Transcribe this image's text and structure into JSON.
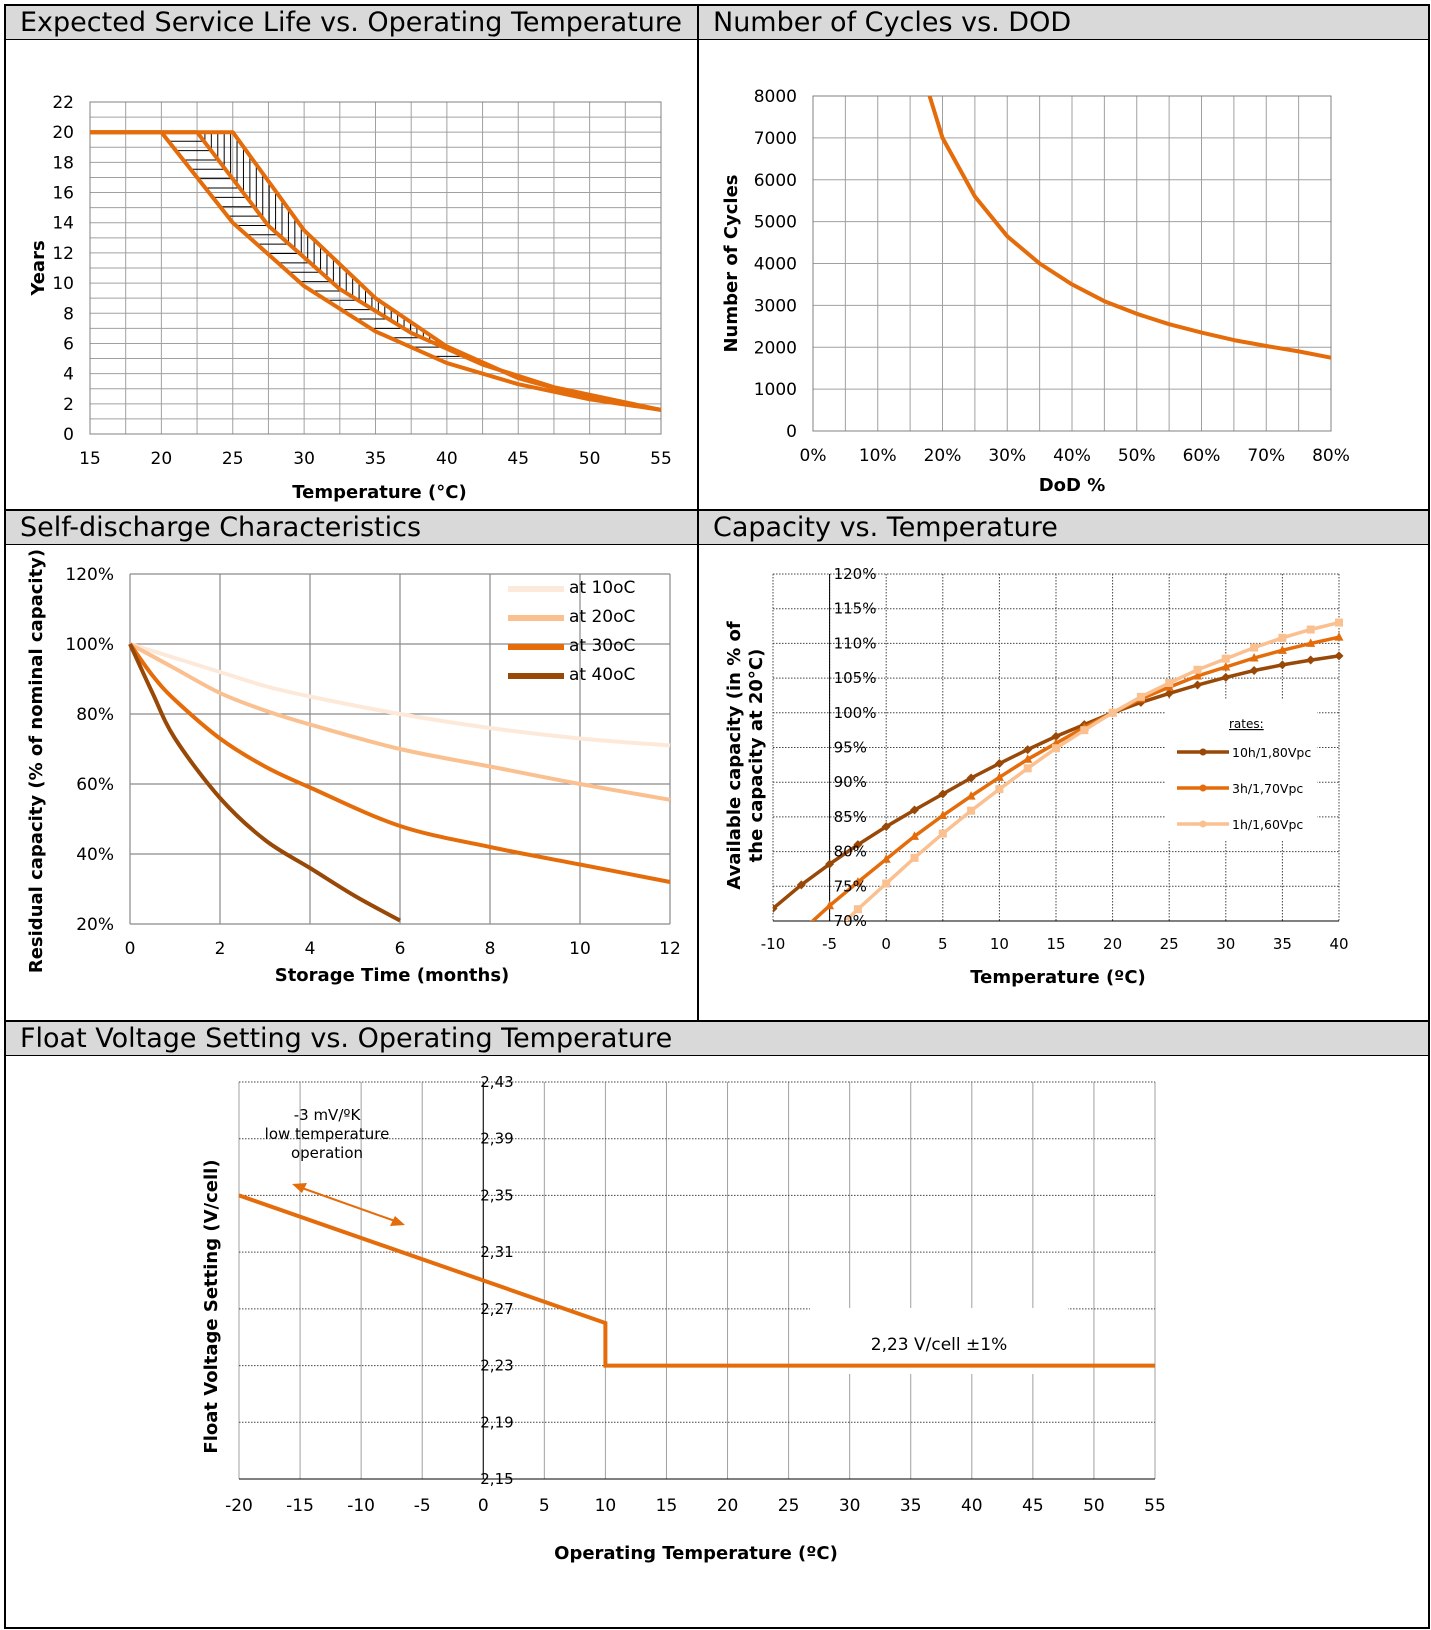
{
  "colors": {
    "orange": "#e46c0a",
    "dark_brown": "#984807",
    "light_orange": "#fac090",
    "pale_orange": "#fde9d9",
    "header_gray": "#d9d9d9",
    "grid": "#9a9a9a"
  },
  "chart_data": [
    {
      "id": "service-life",
      "type": "line",
      "title": "Expected Service Life vs. Operating Temperature",
      "xlabel": "Temperature (°C)",
      "ylabel": "Years",
      "xlim": [
        15,
        55
      ],
      "ylim": [
        0,
        22
      ],
      "x_ticks": [
        "15",
        "20",
        "25",
        "30",
        "35",
        "40",
        "45",
        "50",
        "55"
      ],
      "y_ticks": [
        "0",
        "2",
        "4",
        "6",
        "8",
        "10",
        "12",
        "14",
        "16",
        "18",
        "20",
        "22"
      ],
      "grid": true,
      "series": [
        {
          "x": [
            15,
            20,
            25,
            30,
            35,
            40,
            45,
            50,
            55
          ],
          "values": [
            20,
            20,
            14,
            9.8,
            6.8,
            4.7,
            3.3,
            2.3,
            1.6
          ]
        },
        {
          "x": [
            15,
            22.5,
            27.5,
            32.5,
            37.5,
            42.5,
            47.5,
            52.5,
            55
          ],
          "values": [
            20,
            20,
            13.8,
            9.6,
            6.7,
            4.6,
            3.1,
            2.1,
            1.6
          ]
        },
        {
          "x": [
            15,
            25,
            30,
            35,
            40,
            45,
            50,
            55
          ],
          "values": [
            20,
            20,
            13.5,
            9,
            5.8,
            3.7,
            2.4,
            1.6
          ]
        }
      ],
      "shaded_region": "hatched band between lower and upper curves"
    },
    {
      "id": "cycles-dod",
      "type": "line",
      "title": "Number of Cycles vs. DOD",
      "xlabel": "DoD %",
      "ylabel": "Number of Cycles",
      "xlim": [
        0,
        80
      ],
      "ylim": [
        0,
        8000
      ],
      "x_ticks": [
        "0%",
        "10%",
        "20%",
        "30%",
        "40%",
        "50%",
        "60%",
        "70%",
        "80%"
      ],
      "y_ticks": [
        "0",
        "1000",
        "2000",
        "3000",
        "4000",
        "5000",
        "6000",
        "7000",
        "8000"
      ],
      "grid": true,
      "series": [
        {
          "x": [
            18,
            20,
            25,
            30,
            35,
            40,
            45,
            50,
            55,
            60,
            65,
            70,
            75,
            80
          ],
          "values": [
            8000,
            7000,
            5600,
            4650,
            4000,
            3500,
            3100,
            2800,
            2550,
            2350,
            2170,
            2030,
            1900,
            1750
          ]
        }
      ]
    },
    {
      "id": "self-discharge",
      "type": "line",
      "title": "Self-discharge Characteristics",
      "xlabel": "Storage Time (months)",
      "ylabel": "Residual capacity (% of  nominal capacity)",
      "xlim": [
        0,
        12
      ],
      "ylim": [
        20,
        120
      ],
      "x_ticks": [
        "0",
        "2",
        "4",
        "6",
        "8",
        "10",
        "12"
      ],
      "y_ticks": [
        "20%",
        "40%",
        "60%",
        "80%",
        "100%",
        "120%"
      ],
      "grid": true,
      "legend": "top-right",
      "series": [
        {
          "name": "at 10oC",
          "x": [
            0,
            1,
            2,
            3,
            4,
            6,
            8,
            10,
            12
          ],
          "values": [
            100,
            96,
            92,
            88,
            85,
            80,
            76,
            73,
            71
          ]
        },
        {
          "name": "at 20oC",
          "x": [
            0,
            1,
            2,
            3,
            4,
            6,
            8,
            10,
            12
          ],
          "values": [
            100,
            93,
            86,
            81,
            77,
            70,
            65,
            60,
            55.5
          ]
        },
        {
          "name": "at 30oC",
          "x": [
            0,
            0.5,
            1,
            2,
            3,
            4,
            6,
            8,
            10,
            12
          ],
          "values": [
            100,
            91,
            84,
            73,
            65,
            59,
            48,
            42,
            37,
            32
          ]
        },
        {
          "name": "at 40oC",
          "x": [
            0,
            0.5,
            1,
            2,
            3,
            4,
            5,
            6
          ],
          "values": [
            100,
            86,
            73,
            56,
            44,
            36,
            28,
            21
          ]
        }
      ]
    },
    {
      "id": "capacity-temp",
      "type": "line",
      "title": "Capacity vs. Temperature",
      "xlabel": "Temperature (ºC)",
      "ylabel": "Available capacity (in % of  the capacity at 20°C)",
      "xlim": [
        -10,
        40
      ],
      "ylim": [
        70,
        120
      ],
      "x_ticks": [
        "-10",
        "-5",
        "0",
        "5",
        "10",
        "15",
        "20",
        "25",
        "30",
        "35",
        "40"
      ],
      "y_ticks": [
        "70%",
        "75%",
        "80%",
        "85%",
        "90%",
        "95%",
        "100%",
        "105%",
        "110%",
        "115%",
        "120%"
      ],
      "grid": true,
      "legend_title": "rates:",
      "legend": "right",
      "series": [
        {
          "name": "10h/1,80Vpc",
          "marker": "diamond",
          "x": [
            -10,
            -7.5,
            -5,
            -2.5,
            0,
            2.5,
            5,
            7.5,
            10,
            12.5,
            15,
            17.5,
            20,
            22.5,
            25,
            27.5,
            30,
            32.5,
            35,
            37.5,
            40
          ],
          "values": [
            71.8,
            75.2,
            78.2,
            81,
            83.6,
            86,
            88.3,
            90.6,
            92.7,
            94.7,
            96.6,
            98.3,
            100,
            101.5,
            102.8,
            104,
            105.1,
            106.1,
            106.9,
            107.6,
            108.2
          ]
        },
        {
          "name": "3h/1,70Vpc",
          "marker": "triangle",
          "x": [
            -7.5,
            -5,
            -2.5,
            0,
            2.5,
            5,
            7.5,
            10,
            12.5,
            15,
            17.5,
            20,
            22.5,
            25,
            27.5,
            30,
            32.5,
            35,
            37.5,
            40
          ],
          "values": [
            68.5,
            72.2,
            75.6,
            78.9,
            82.2,
            85.2,
            88,
            90.7,
            93.3,
            95.6,
            97.9,
            100,
            102,
            103.7,
            105.3,
            106.6,
            107.9,
            109,
            110,
            110.9
          ]
        },
        {
          "name": "1h/1,60Vpc",
          "marker": "square",
          "x": [
            -5,
            -2.5,
            0,
            2.5,
            5,
            7.5,
            10,
            12.5,
            15,
            17.5,
            20,
            22.5,
            25,
            27.5,
            30,
            32.5,
            35,
            37.5,
            40
          ],
          "values": [
            67.8,
            71.7,
            75.4,
            79.1,
            82.6,
            85.9,
            89,
            92,
            94.9,
            97.5,
            100,
            102.3,
            104.3,
            106.2,
            107.8,
            109.4,
            110.8,
            112,
            113
          ]
        }
      ]
    },
    {
      "id": "float-voltage",
      "type": "line",
      "title": "Float Voltage Setting vs. Operating Temperature",
      "xlabel": "Operating Temperature (ºC)",
      "ylabel": "Float Voltage Setting (V/cell)",
      "xlim": [
        -20,
        55
      ],
      "ylim": [
        2.15,
        2.43
      ],
      "x_ticks": [
        "-20",
        "-15",
        "-10",
        "-5",
        "0",
        "5",
        "10",
        "15",
        "20",
        "25",
        "30",
        "35",
        "40",
        "45",
        "50",
        "55"
      ],
      "y_ticks": [
        "2,15",
        "2,19",
        "2,23",
        "2,27",
        "2,31",
        "2,35",
        "2,39",
        "2,43"
      ],
      "grid": true,
      "series": [
        {
          "x": [
            -20,
            10,
            10,
            55
          ],
          "values": [
            2.35,
            2.26,
            2.23,
            2.23
          ]
        }
      ],
      "annotations": {
        "slope_line1": "-3 mV/ºK",
        "slope_line2": "low temperature",
        "slope_line3": "operation",
        "flat_label": "2,23 V/cell ±1%"
      }
    }
  ]
}
